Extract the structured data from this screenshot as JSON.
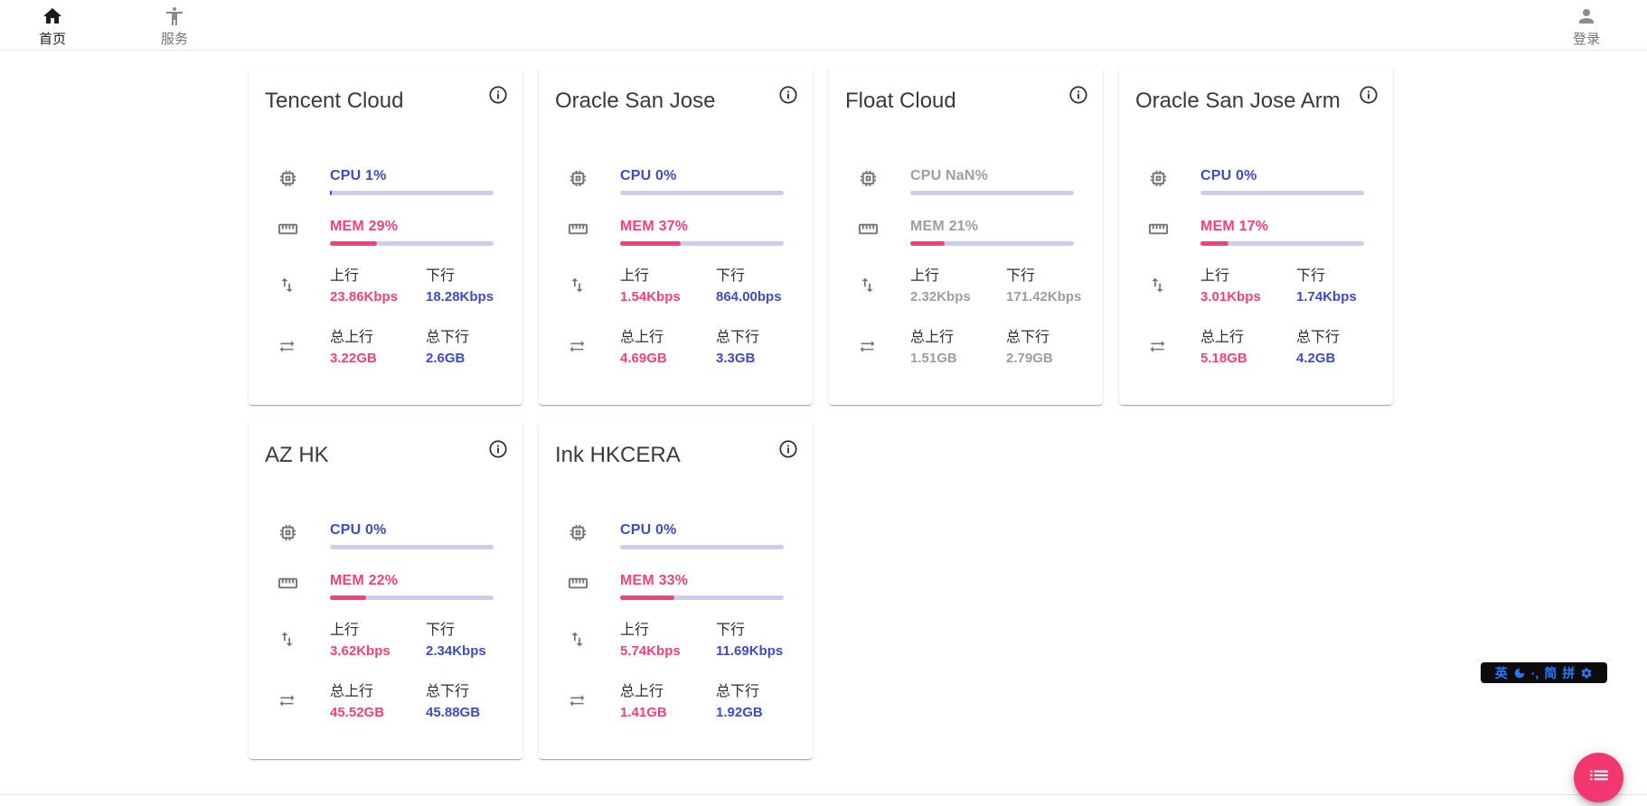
{
  "nav": {
    "home": {
      "label": "首页"
    },
    "services": {
      "label": "服务"
    },
    "login": {
      "label": "登录"
    }
  },
  "labels": {
    "up": "上行",
    "down": "下行",
    "total_up": "总上行",
    "total_down": "总下行"
  },
  "servers": [
    {
      "name": "Tencent Cloud",
      "cpu_text": "CPU 1%",
      "cpu_pct": 1,
      "mem_text": "MEM 29%",
      "mem_pct": 29,
      "up": "23.86Kbps",
      "down": "18.28Kbps",
      "total_up": "3.22GB",
      "total_down": "2.6GB",
      "online": true
    },
    {
      "name": "Oracle San Jose",
      "cpu_text": "CPU 0%",
      "cpu_pct": 0,
      "mem_text": "MEM 37%",
      "mem_pct": 37,
      "up": "1.54Kbps",
      "down": "864.00bps",
      "total_up": "4.69GB",
      "total_down": "3.3GB",
      "online": true
    },
    {
      "name": "Float Cloud",
      "cpu_text": "CPU NaN%",
      "cpu_pct": 0,
      "mem_text": "MEM 21%",
      "mem_pct": 21,
      "up": "2.32Kbps",
      "down": "171.42Kbps",
      "total_up": "1.51GB",
      "total_down": "2.79GB",
      "online": false
    },
    {
      "name": "Oracle San Jose Arm",
      "cpu_text": "CPU 0%",
      "cpu_pct": 0,
      "mem_text": "MEM 17%",
      "mem_pct": 17,
      "up": "3.01Kbps",
      "down": "1.74Kbps",
      "total_up": "5.18GB",
      "total_down": "4.2GB",
      "online": true
    },
    {
      "name": "AZ HK",
      "cpu_text": "CPU 0%",
      "cpu_pct": 0,
      "mem_text": "MEM 22%",
      "mem_pct": 22,
      "up": "3.62Kbps",
      "down": "2.34Kbps",
      "total_up": "45.52GB",
      "total_down": "45.88GB",
      "online": true
    },
    {
      "name": "Ink HKCERA",
      "cpu_text": "CPU 0%",
      "cpu_pct": 0,
      "mem_text": "MEM 33%",
      "mem_pct": 33,
      "up": "5.74Kbps",
      "down": "11.69Kbps",
      "total_up": "1.41GB",
      "total_down": "1.92GB",
      "online": true
    }
  ],
  "ime": {
    "english": "英",
    "punct": "·,",
    "simplified": "简",
    "pinyin": "拼"
  },
  "colors": {
    "accent_blue": "#3d4dc0",
    "accent_pink": "#f1417e",
    "bar_track": "#c9cfee",
    "offline_gray": "#9e9e9e",
    "icon_gray": "#757575",
    "fab_pink": "#f1376e",
    "ime_blue": "#2979ff"
  }
}
